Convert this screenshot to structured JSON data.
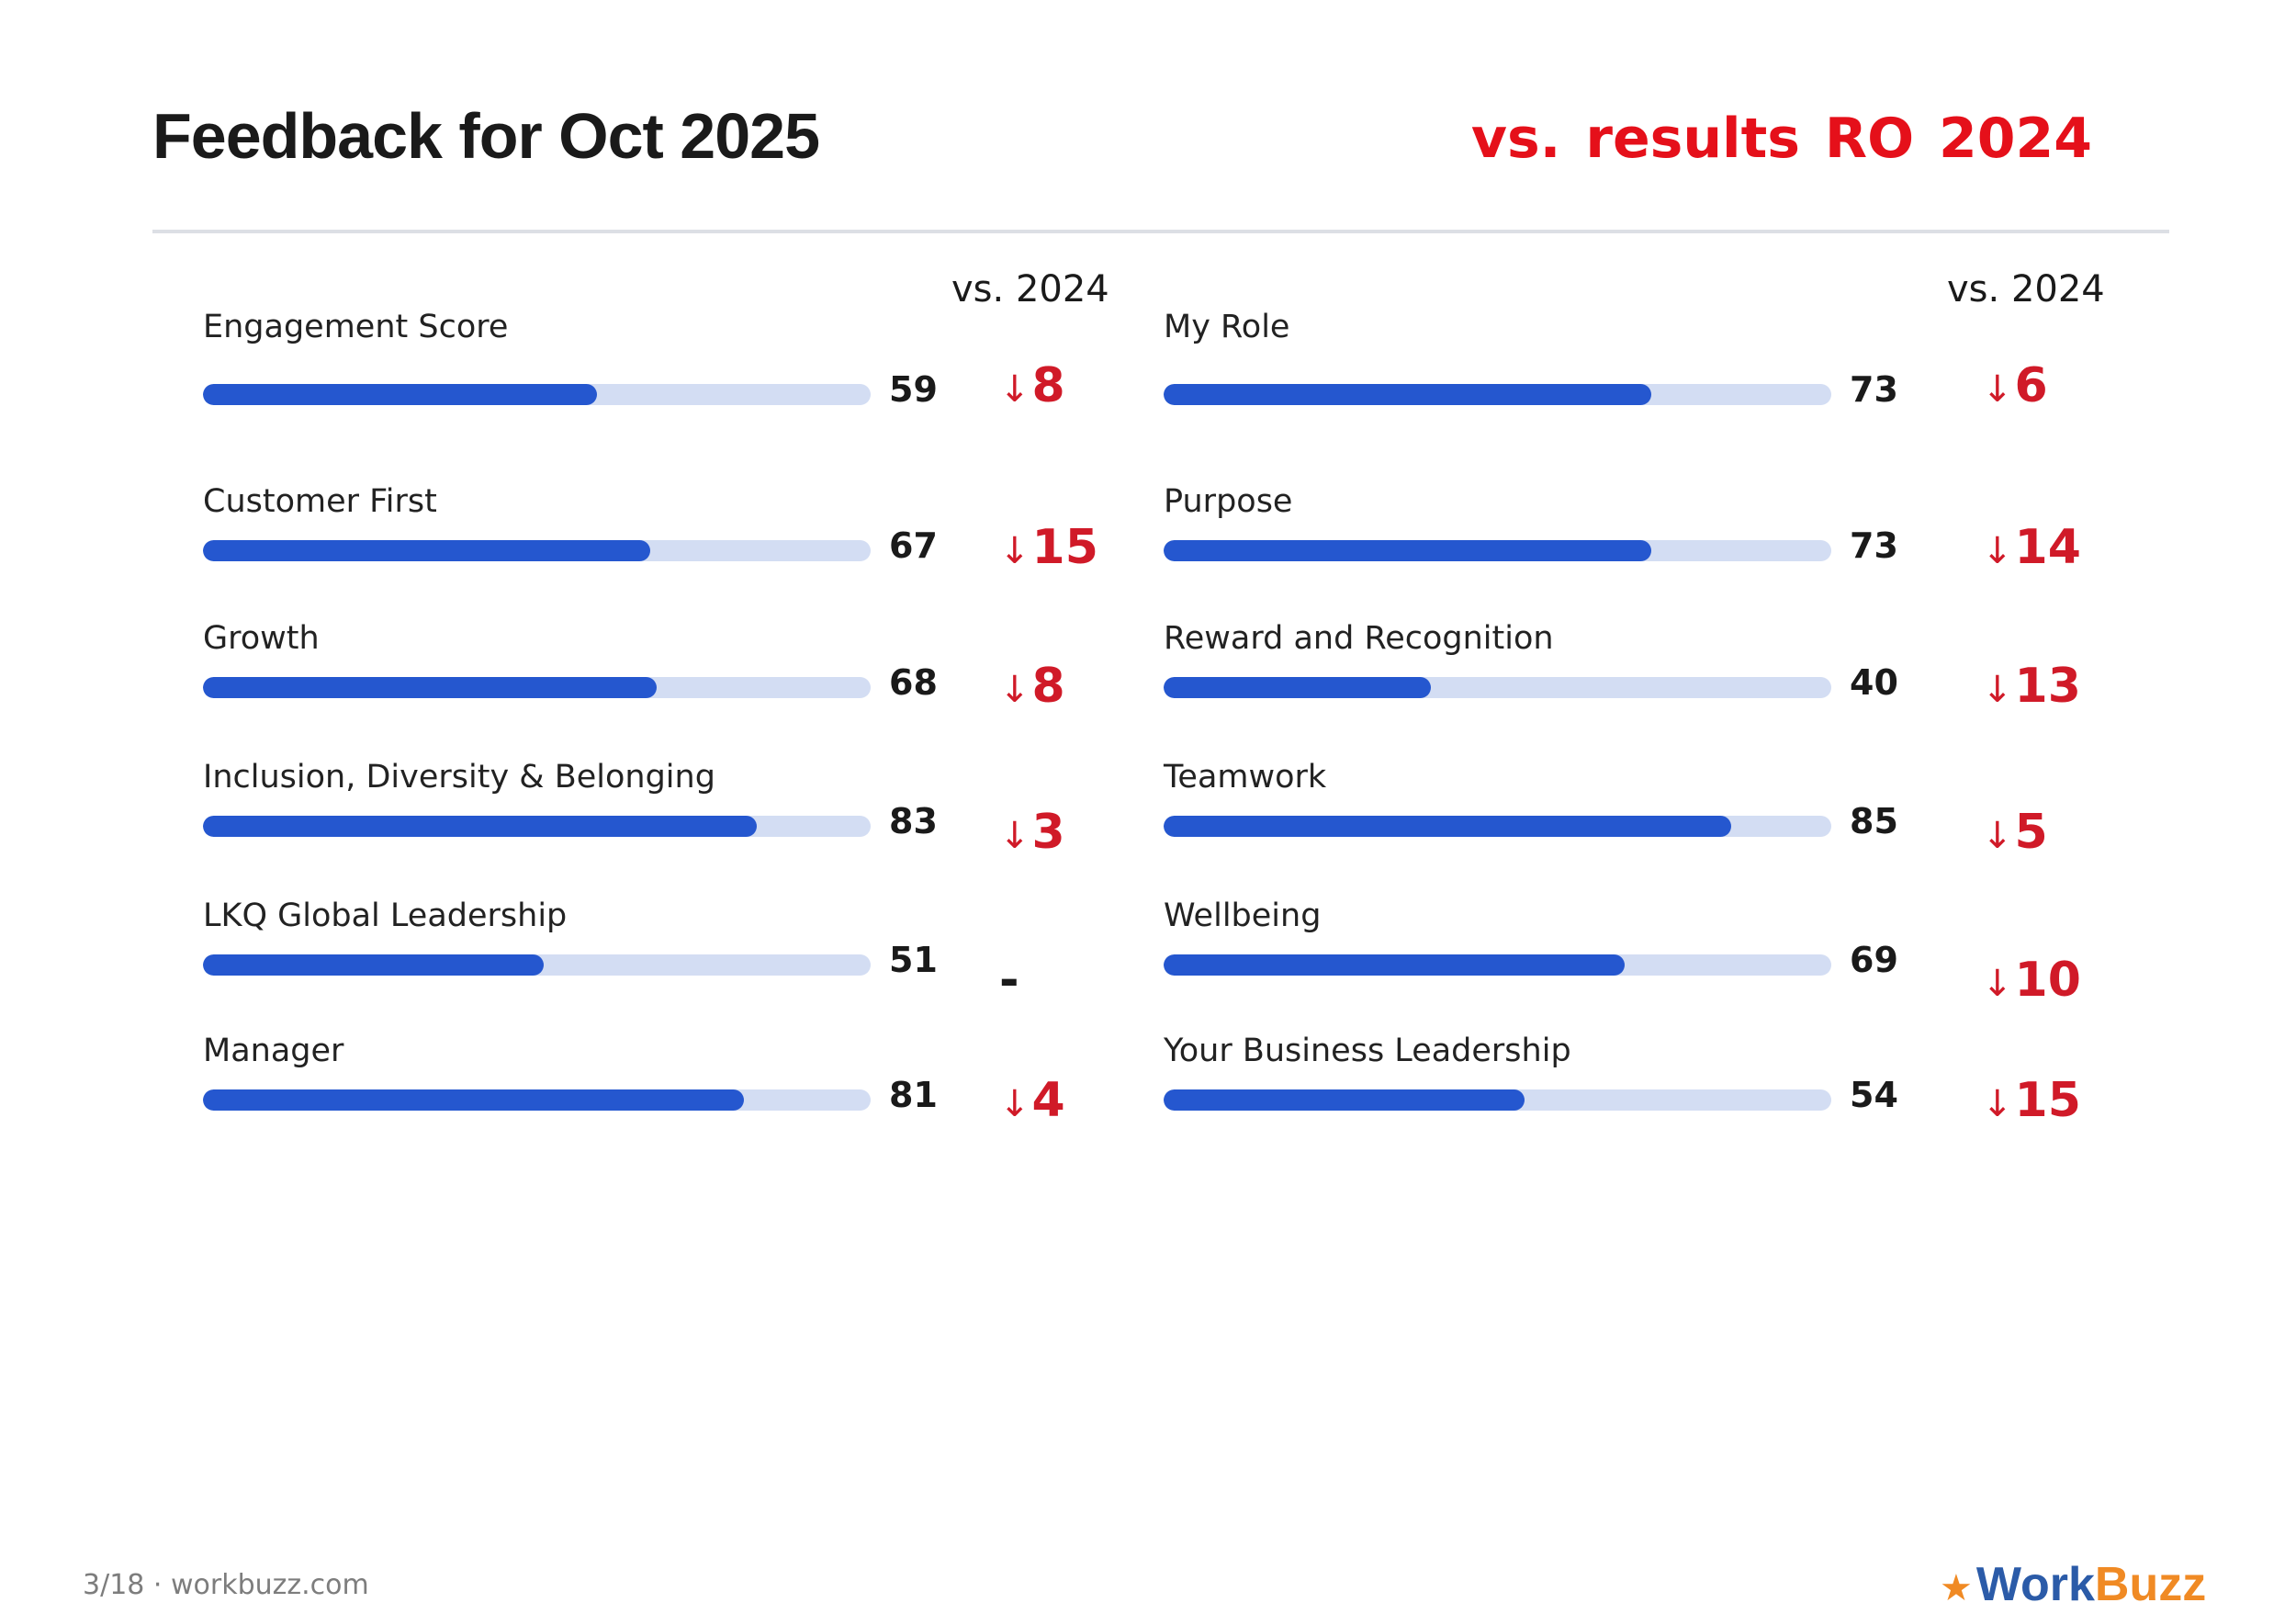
{
  "header": {
    "title": "Feedback for Oct 2025",
    "subtitle": "vs. results RO 2024"
  },
  "columns": [
    {
      "vs_label": "vs. 2024",
      "metrics": [
        {
          "label": "Engagement Score",
          "score": 59,
          "score_text": "59",
          "delta": "8",
          "direction": "down"
        },
        {
          "label": "Customer First",
          "score": 67,
          "score_text": "67",
          "delta": "15",
          "direction": "down"
        },
        {
          "label": "Growth",
          "score": 68,
          "score_text": "68",
          "delta": "8",
          "direction": "down"
        },
        {
          "label": "Inclusion, Diversity & Belonging",
          "score": 83,
          "score_text": "83",
          "delta": "3",
          "direction": "down"
        },
        {
          "label": "LKQ Global Leadership",
          "score": 51,
          "score_text": "51",
          "delta": "-",
          "direction": "none"
        },
        {
          "label": "Manager",
          "score": 81,
          "score_text": "81",
          "delta": "4",
          "direction": "down"
        }
      ]
    },
    {
      "vs_label": "vs. 2024",
      "metrics": [
        {
          "label": "My Role",
          "score": 73,
          "score_text": "73",
          "delta": "6",
          "direction": "down"
        },
        {
          "label": "Purpose",
          "score": 73,
          "score_text": "73",
          "delta": "14",
          "direction": "down"
        },
        {
          "label": "Reward and Recognition",
          "score": 40,
          "score_text": "40",
          "delta": "13",
          "direction": "down"
        },
        {
          "label": "Teamwork",
          "score": 85,
          "score_text": "85",
          "delta": "5",
          "direction": "down"
        },
        {
          "label": "Wellbeing",
          "score": 69,
          "score_text": "69",
          "delta": "10",
          "direction": "down"
        },
        {
          "label": "Your Business Leadership",
          "score": 54,
          "score_text": "54",
          "delta": "15",
          "direction": "down"
        }
      ]
    }
  ],
  "arrow_glyph": "↓",
  "footer": {
    "page_info": "3/18 · workbuzz.com",
    "logo_work": "Work",
    "logo_buzz": "Buzz",
    "logo_icon": "star-icon"
  },
  "colors": {
    "bar_fill": "#2557cf",
    "bar_track": "#d3ddf3",
    "delta_down": "#d01a28",
    "subtitle": "#e5101a"
  }
}
